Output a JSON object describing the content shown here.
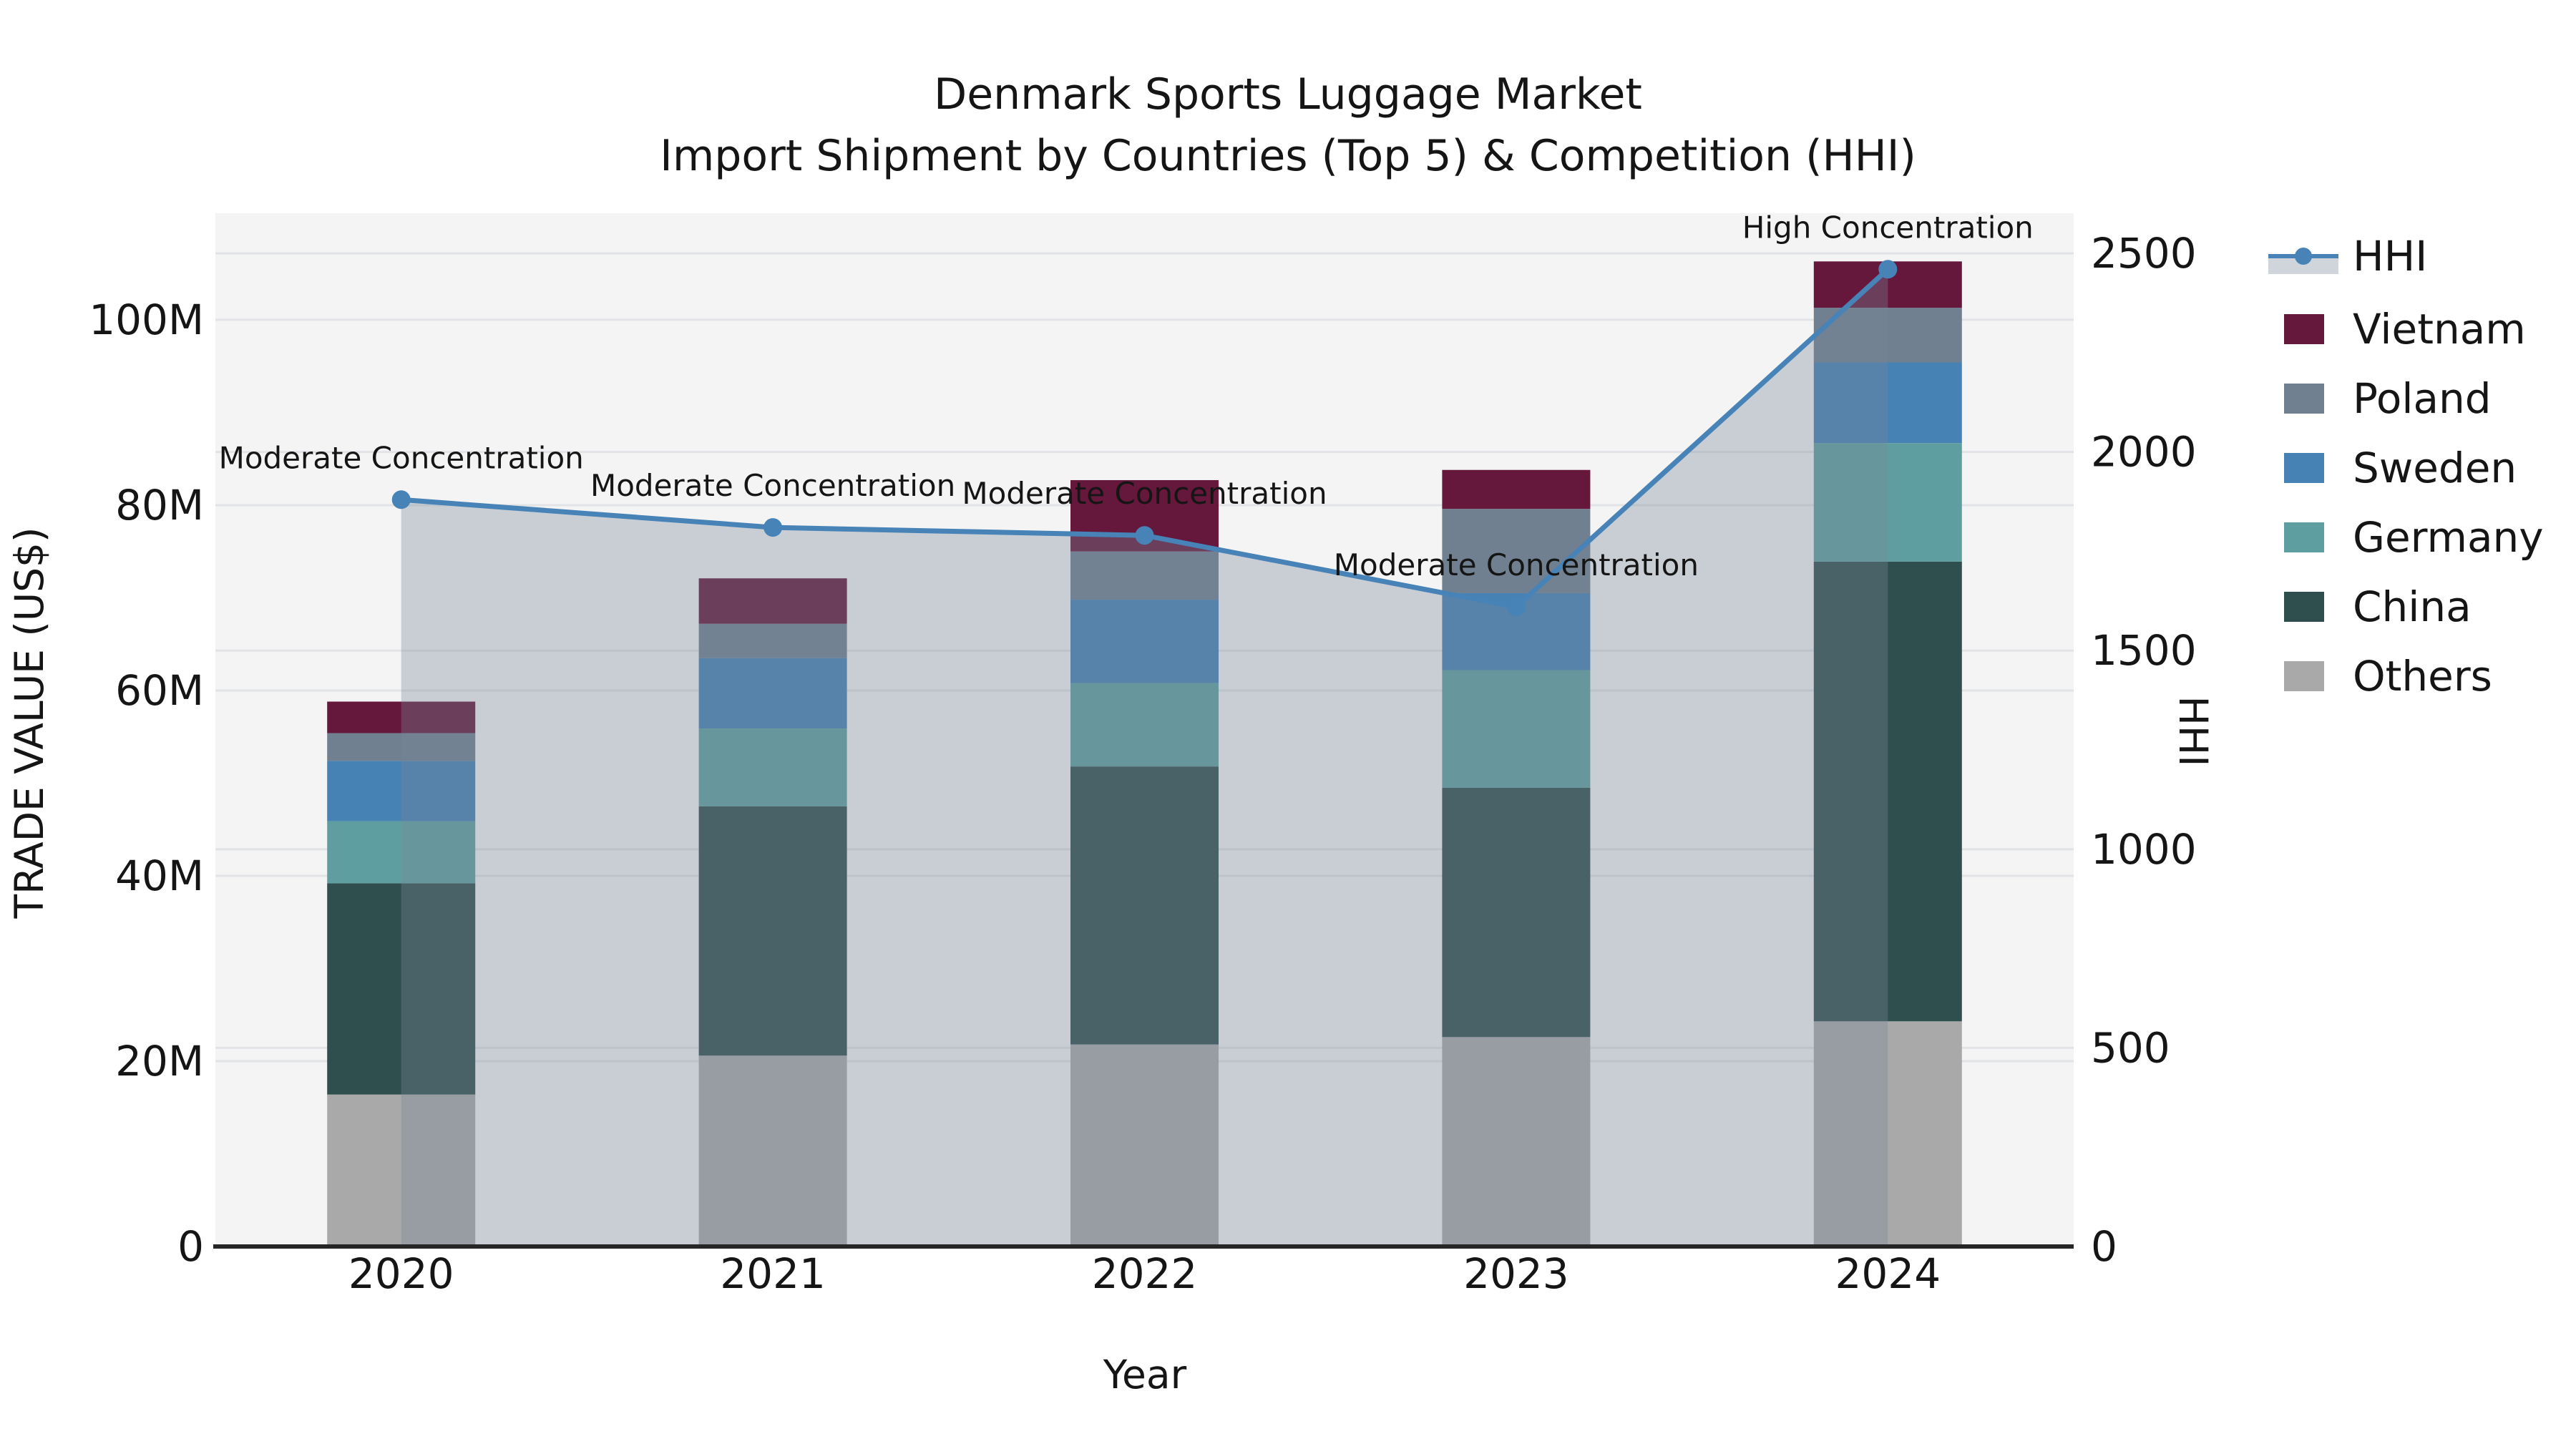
{
  "title": {
    "line1": "Denmark Sports Luggage Market",
    "line2": "Import Shipment by Countries (Top 5) & Competition (HHI)"
  },
  "axes": {
    "x_label": "Year",
    "left_label": "TRADE VALUE (US$)",
    "right_label": "HHI",
    "left_ticks": [
      {
        "v": 0,
        "label": "0"
      },
      {
        "v": 20,
        "label": "20M"
      },
      {
        "v": 40,
        "label": "40M"
      },
      {
        "v": 60,
        "label": "60M"
      },
      {
        "v": 80,
        "label": "80M"
      },
      {
        "v": 100,
        "label": "100M"
      }
    ],
    "right_ticks": [
      {
        "v": 0,
        "label": "0"
      },
      {
        "v": 500,
        "label": "500"
      },
      {
        "v": 1000,
        "label": "1000"
      },
      {
        "v": 1500,
        "label": "1500"
      },
      {
        "v": 2000,
        "label": "2000"
      },
      {
        "v": 2500,
        "label": "2500"
      }
    ]
  },
  "colors": {
    "figure_bg": "#ffffff",
    "plot_bg": "#f4f4f5",
    "grid": "#e2e3e6",
    "spine": "#262626",
    "text": "#151515",
    "hhi_line": "#4783b7",
    "hhi_area_fill": "rgba(119,136,153,0.35)"
  },
  "chart_data": {
    "type": "bar",
    "subtype": "stacked-bars-with-line-overlay",
    "categories": [
      "2020",
      "2021",
      "2022",
      "2023",
      "2024"
    ],
    "unit": "M US$ (trade value, left axis)",
    "series": [
      {
        "name": "Others",
        "color": "#a9a9a9",
        "values": [
          16.4,
          20.6,
          21.8,
          22.6,
          24.3
        ]
      },
      {
        "name": "China",
        "color": "#2f4f4f",
        "values": [
          22.8,
          26.9,
          30.0,
          26.9,
          49.6
        ]
      },
      {
        "name": "Germany",
        "color": "#5f9ea0",
        "values": [
          6.7,
          8.4,
          9.0,
          12.7,
          12.8
        ]
      },
      {
        "name": "Sweden",
        "color": "#4682b4",
        "values": [
          6.5,
          7.6,
          9.0,
          8.3,
          8.7
        ]
      },
      {
        "name": "Poland",
        "color": "#708090",
        "values": [
          3.0,
          3.7,
          5.2,
          9.1,
          5.9
        ]
      },
      {
        "name": "Vietnam",
        "color": "#65173c",
        "values": [
          3.4,
          4.9,
          7.7,
          4.2,
          5.0
        ]
      }
    ],
    "line": {
      "name": "HHI",
      "axis": "right",
      "values": [
        1880,
        1810,
        1790,
        1610,
        2460
      ],
      "area_under_line": true
    },
    "annotations": [
      {
        "category": "2020",
        "text": "Moderate Concentration"
      },
      {
        "category": "2021",
        "text": "Moderate Concentration"
      },
      {
        "category": "2022",
        "text": "Moderate Concentration"
      },
      {
        "category": "2023",
        "text": "Moderate Concentration"
      },
      {
        "category": "2024",
        "text": "High Concentration"
      }
    ],
    "legend_order": [
      "HHI",
      "Vietnam",
      "Poland",
      "Sweden",
      "Germany",
      "China",
      "Others"
    ],
    "left_ylim": [
      0,
      111.5
    ],
    "right_ylim": [
      0,
      2601
    ],
    "grid": true,
    "legend_position": "right-outside"
  }
}
